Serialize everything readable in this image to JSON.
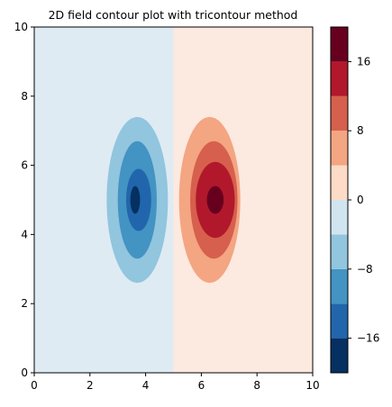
{
  "chart_data": {
    "type": "contour",
    "title": "2D field contour plot with tricontour method",
    "xlabel": "",
    "ylabel": "",
    "xlim": [
      0,
      10
    ],
    "ylim": [
      0,
      10
    ],
    "x_ticks": [
      "0",
      "2",
      "4",
      "6",
      "8",
      "10"
    ],
    "y_ticks": [
      "0",
      "2",
      "4",
      "6",
      "8",
      "10"
    ],
    "colormap": "RdBu_r",
    "levels": [
      -20,
      -16,
      -12,
      -8,
      -4,
      0,
      4,
      8,
      12,
      16,
      20
    ],
    "level_colors": [
      "#053061",
      "#2166ac",
      "#4393c3",
      "#92c5de",
      "#d1e5f0",
      "#fddbc7",
      "#f4a582",
      "#d6604d",
      "#b2182b",
      "#67001f"
    ],
    "colorbar": {
      "range": [
        -20,
        20
      ],
      "ticks": [
        "−16",
        "−8",
        "0",
        "8",
        "16"
      ],
      "tick_values": [
        -16,
        -8,
        0,
        8,
        16
      ]
    },
    "field": {
      "negative_lobe_center": [
        3.6,
        5.0
      ],
      "positive_lobe_center": [
        6.4,
        5.0
      ],
      "lobe_extent_x": [
        2.8,
        5.0
      ],
      "lobe_extent_y": [
        2.6,
        7.4
      ],
      "negative_background": [
        0,
        5
      ],
      "positive_background": [
        5,
        10
      ],
      "contours": [
        {
          "sign": "negative",
          "band": [
            -8,
            -4
          ],
          "x": [
            2.6,
            4.8
          ],
          "y": [
            2.6,
            7.4
          ]
        },
        {
          "sign": "negative",
          "band": [
            -12,
            -8
          ],
          "x": [
            3.0,
            4.4
          ],
          "y": [
            3.3,
            6.7
          ]
        },
        {
          "sign": "negative",
          "band": [
            -16,
            -12
          ],
          "x": [
            3.3,
            4.2
          ],
          "y": [
            4.1,
            5.9
          ]
        },
        {
          "sign": "negative",
          "band": [
            -20,
            -16
          ],
          "x": [
            3.45,
            3.8
          ],
          "y": [
            4.6,
            5.4
          ]
        },
        {
          "sign": "positive",
          "band": [
            4,
            8
          ],
          "x": [
            5.2,
            7.4
          ],
          "y": [
            2.6,
            7.4
          ]
        },
        {
          "sign": "positive",
          "band": [
            8,
            12
          ],
          "x": [
            5.6,
            7.3
          ],
          "y": [
            3.3,
            6.7
          ]
        },
        {
          "sign": "positive",
          "band": [
            12,
            16
          ],
          "x": [
            5.8,
            7.2
          ],
          "y": [
            3.9,
            6.1
          ]
        },
        {
          "sign": "positive",
          "band": [
            16,
            20
          ],
          "x": [
            6.2,
            6.8
          ],
          "y": [
            4.6,
            5.4
          ]
        }
      ]
    }
  },
  "colors": {
    "background": "#ffffff",
    "axis": "#000000",
    "negative_bg": "#deebf3",
    "positive_bg": "#fce9df"
  }
}
